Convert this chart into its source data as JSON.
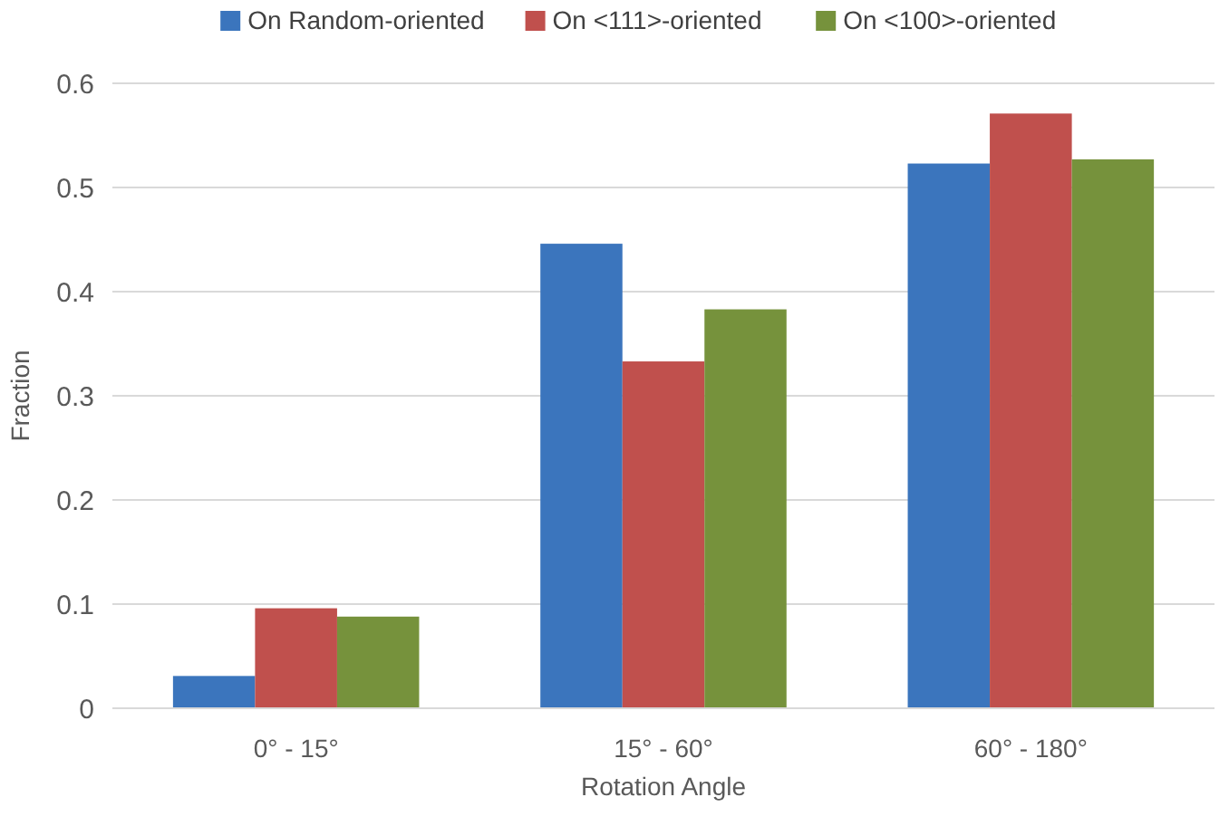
{
  "chart_data": {
    "type": "bar",
    "xlabel": "Rotation Angle",
    "ylabel": "Fraction",
    "categories": [
      "0° - 15°",
      "15° - 60°",
      "60° - 180°"
    ],
    "series": [
      {
        "name": "On Random-oriented",
        "color": "#3b75bd",
        "values": [
          0.031,
          0.446,
          0.523
        ]
      },
      {
        "name": "On <111>-oriented",
        "color": "#c0504d",
        "values": [
          0.096,
          0.333,
          0.571
        ]
      },
      {
        "name": "On <100>-oriented",
        "color": "#76923c",
        "values": [
          0.088,
          0.383,
          0.527
        ]
      }
    ],
    "ylim": [
      0,
      0.6
    ],
    "yticks": [
      {
        "value": 0,
        "label": "0"
      },
      0.1,
      0.2,
      0.3,
      0.4,
      0.5,
      0.6
    ],
    "grid": "y",
    "legend": "top"
  }
}
